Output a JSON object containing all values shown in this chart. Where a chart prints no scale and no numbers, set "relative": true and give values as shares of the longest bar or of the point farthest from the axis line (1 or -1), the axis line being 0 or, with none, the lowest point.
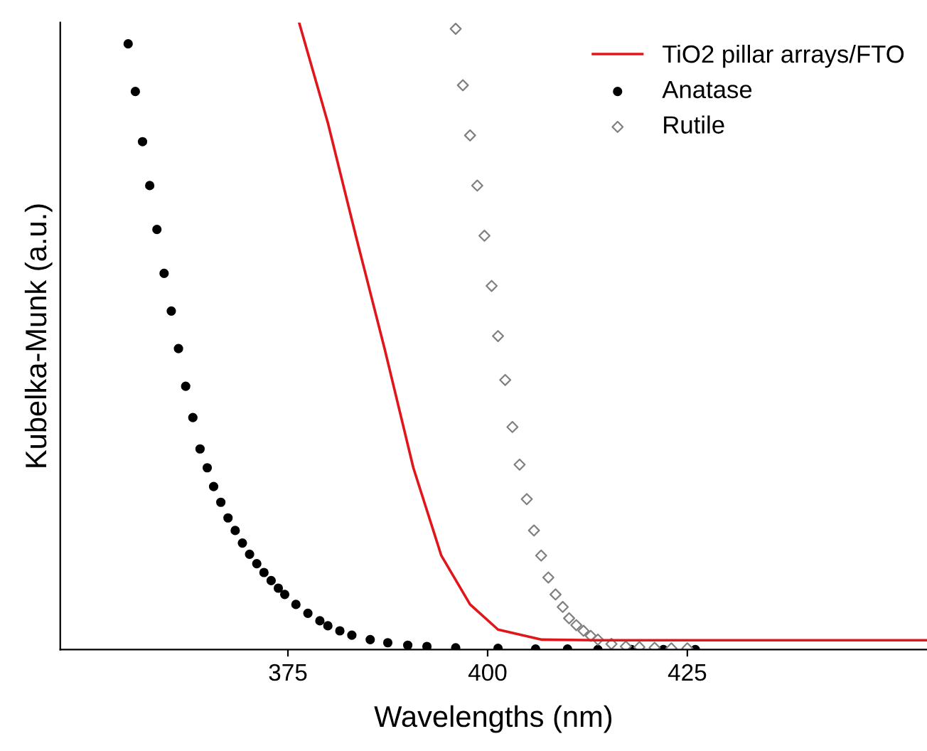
{
  "chart_data": {
    "type": "line",
    "xlabel": "Wavelengths (nm)",
    "ylabel": "Kubelka-Munk (a.u.)",
    "relative": true,
    "xlim": [
      346.5,
      455
    ],
    "xticks": [
      375,
      400,
      425
    ],
    "tick_labels": "x",
    "grid": false,
    "legend": "top right",
    "series": [
      {
        "name": "TiO2 pillar arrays/FTO",
        "color": "#e0161b",
        "x": [
          376.4,
          380.0,
          383.5,
          387.1,
          390.7,
          394.2,
          397.8,
          401.3,
          406.7,
          413.8,
          420,
          430,
          440,
          455
        ],
        "values": [
          1.0,
          0.84,
          0.66,
          0.48,
          0.29,
          0.15,
          0.072,
          0.032,
          0.016,
          0.015,
          0.015,
          0.015,
          0.015,
          0.015
        ]
      },
      {
        "name": "Anatase",
        "type": "scatter",
        "marker": "circle",
        "color": "#000000",
        "x": [
          355.0,
          355.9,
          356.8,
          357.7,
          358.6,
          359.5,
          360.4,
          361.3,
          362.2,
          363.1,
          364.0,
          364.9,
          365.7,
          366.6,
          367.5,
          368.4,
          369.3,
          370.2,
          371.1,
          372.0,
          372.9,
          373.8,
          374.6,
          376.0,
          377.5,
          379.0,
          380.0,
          381.5,
          383.0,
          385.3,
          387.5,
          390.0,
          392.4,
          396.0,
          401.3,
          406.0,
          410.0,
          413.8,
          418.0,
          422.0,
          426.0
        ],
        "values": [
          0.966,
          0.89,
          0.81,
          0.74,
          0.67,
          0.6,
          0.54,
          0.48,
          0.42,
          0.37,
          0.32,
          0.29,
          0.26,
          0.235,
          0.21,
          0.19,
          0.17,
          0.152,
          0.137,
          0.123,
          0.11,
          0.098,
          0.088,
          0.072,
          0.058,
          0.046,
          0.038,
          0.03,
          0.023,
          0.016,
          0.011,
          0.007,
          0.005,
          0.003,
          0.002,
          0.001,
          0.001,
          0.0,
          0.0,
          0.0,
          0.0
        ]
      },
      {
        "name": "Rutile",
        "type": "scatter",
        "marker": "diamond",
        "color": "#808080",
        "x": [
          396.0,
          396.9,
          397.8,
          398.7,
          399.6,
          400.5,
          401.3,
          402.2,
          403.1,
          404.0,
          404.9,
          405.8,
          406.7,
          407.6,
          408.5,
          409.4,
          410.2,
          411.1,
          412.0,
          412.9,
          413.8,
          415.5,
          417.3,
          419.0,
          420.9,
          423.0,
          425.0
        ],
        "values": [
          0.99,
          0.9,
          0.82,
          0.74,
          0.66,
          0.58,
          0.5,
          0.43,
          0.355,
          0.295,
          0.24,
          0.19,
          0.15,
          0.115,
          0.088,
          0.068,
          0.05,
          0.039,
          0.03,
          0.022,
          0.016,
          0.009,
          0.005,
          0.004,
          0.003,
          0.002,
          0.002
        ]
      }
    ]
  }
}
